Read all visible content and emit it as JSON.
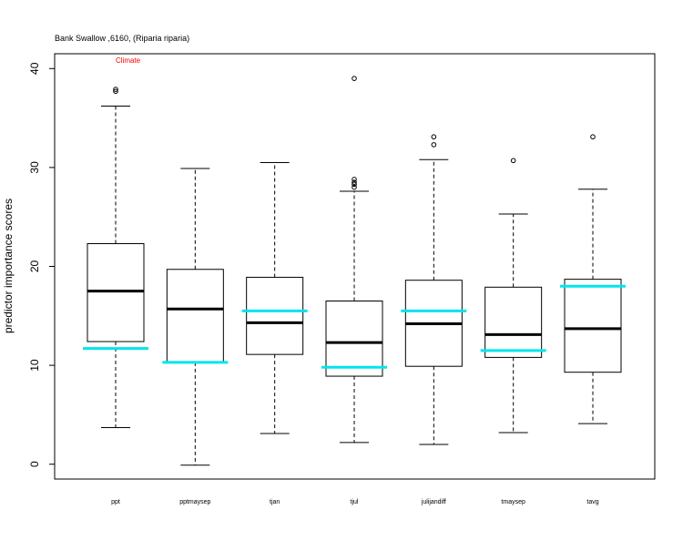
{
  "chart_data": {
    "type": "boxplot",
    "title": "Bank Swallow ,6160, (Riparia riparia)",
    "annotation": "Climate",
    "ylabel": "predictor importance scores",
    "xlabel": "",
    "ylim": [
      -1.5,
      41.5
    ],
    "yticks": [
      0,
      10,
      20,
      30,
      40
    ],
    "grid": false,
    "colors": {
      "box": "#000000",
      "median": "#000000",
      "reference": "#00e5ee",
      "annotation": "#ff0000"
    },
    "categories": [
      "ppt",
      "pptmaysep",
      "tjan",
      "tjul",
      "julijandiff",
      "tmaysep",
      "tavg"
    ],
    "boxes": [
      {
        "category": "ppt",
        "whisker_low": 3.7,
        "q1": 12.4,
        "median": 17.5,
        "q3": 22.3,
        "whisker_high": 36.2,
        "outliers": [
          37.7,
          37.9
        ],
        "reference": 11.7
      },
      {
        "category": "pptmaysep",
        "whisker_low": -0.1,
        "q1": 10.3,
        "median": 15.7,
        "q3": 19.7,
        "whisker_high": 29.9,
        "outliers": [],
        "reference": 10.3
      },
      {
        "category": "tjan",
        "whisker_low": 3.1,
        "q1": 11.1,
        "median": 14.3,
        "q3": 18.9,
        "whisker_high": 30.5,
        "outliers": [],
        "reference": 15.5
      },
      {
        "category": "tjul",
        "whisker_low": 2.2,
        "q1": 8.9,
        "median": 12.3,
        "q3": 16.5,
        "whisker_high": 27.6,
        "outliers": [
          28.0,
          28.3,
          28.5,
          28.8,
          39.0
        ],
        "reference": 9.8
      },
      {
        "category": "julijandiff",
        "whisker_low": 2.0,
        "q1": 9.9,
        "median": 14.2,
        "q3": 18.6,
        "whisker_high": 30.8,
        "outliers": [
          32.3,
          33.1
        ],
        "reference": 15.5
      },
      {
        "category": "tmaysep",
        "whisker_low": 3.2,
        "q1": 10.8,
        "median": 13.1,
        "q3": 17.9,
        "whisker_high": 25.3,
        "outliers": [
          30.7
        ],
        "reference": 11.5
      },
      {
        "category": "tavg",
        "whisker_low": 4.1,
        "q1": 9.3,
        "median": 13.7,
        "q3": 18.7,
        "whisker_high": 27.8,
        "outliers": [
          33.1
        ],
        "reference": 18.0
      }
    ]
  }
}
